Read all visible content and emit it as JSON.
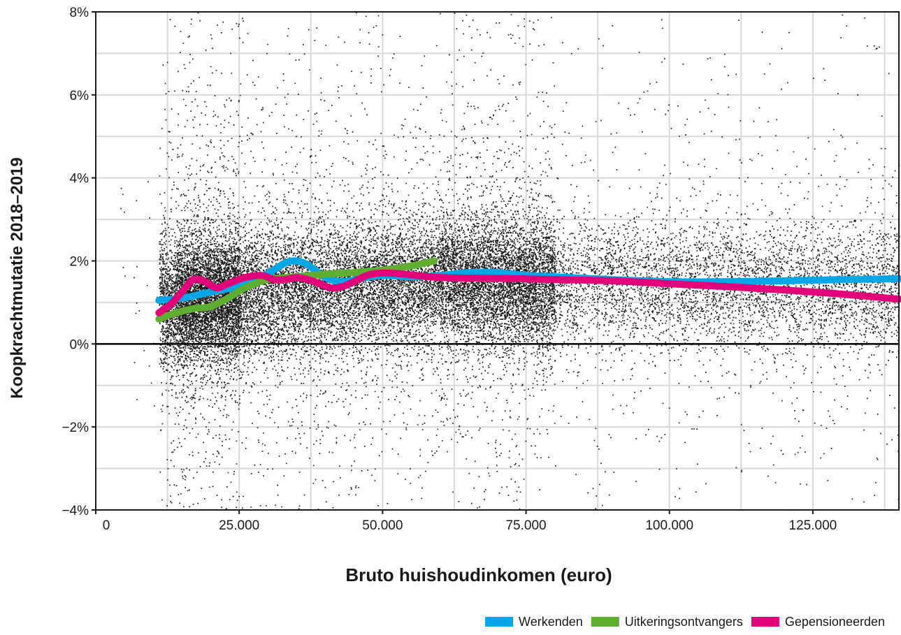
{
  "chart_data": {
    "type": "scatter",
    "xlabel": "Bruto huishoudinkomen (euro)",
    "ylabel": "Koopkrachtmutatie 2018–2019",
    "xlim": [
      0,
      140000
    ],
    "ylim": [
      -4,
      8
    ],
    "x_ticks": [
      {
        "value": 0,
        "label": "0"
      },
      {
        "value": 25000,
        "label": "25.000"
      },
      {
        "value": 50000,
        "label": "50.000"
      },
      {
        "value": 75000,
        "label": "75.000"
      },
      {
        "value": 100000,
        "label": "100.000"
      },
      {
        "value": 125000,
        "label": "125.000"
      }
    ],
    "y_ticks": [
      {
        "value": 8,
        "label": "8%"
      },
      {
        "value": 6,
        "label": "6%"
      },
      {
        "value": 4,
        "label": "4%"
      },
      {
        "value": 2,
        "label": "2%"
      },
      {
        "value": 0,
        "label": "0%"
      },
      {
        "value": -2,
        "label": "−2%"
      },
      {
        "value": -4,
        "label": "−4%"
      }
    ],
    "grid": true,
    "zero_line": true,
    "legend_position": "bottom-right",
    "scatter_color": "#1a1a1a",
    "series": [
      {
        "name": "Werkenden",
        "color": "#00a6e6",
        "x": [
          11000,
          15000,
          20000,
          25000,
          30000,
          33000,
          35000,
          37000,
          40000,
          43000,
          47000,
          50000,
          55000,
          60000,
          65000,
          70000,
          75000,
          80000,
          90000,
          100000,
          110000,
          120000,
          130000,
          140000
        ],
        "y": [
          1.05,
          1.1,
          1.25,
          1.4,
          1.7,
          1.95,
          2.0,
          1.9,
          1.6,
          1.5,
          1.6,
          1.65,
          1.62,
          1.65,
          1.72,
          1.72,
          1.65,
          1.62,
          1.55,
          1.5,
          1.5,
          1.52,
          1.55,
          1.57
        ]
      },
      {
        "name": "Uitkeringsontvangers",
        "color": "#5fae32",
        "x": [
          11000,
          14000,
          17000,
          20000,
          23000,
          26000,
          30000,
          35000,
          40000,
          45000,
          50000,
          55000,
          59000
        ],
        "y": [
          0.6,
          0.75,
          0.85,
          0.9,
          1.1,
          1.35,
          1.55,
          1.62,
          1.68,
          1.72,
          1.78,
          1.88,
          2.0
        ]
      },
      {
        "name": "Gepensioneerden",
        "color": "#e2007a",
        "x": [
          11000,
          13000,
          15000,
          17000,
          19000,
          21000,
          23000,
          26000,
          29000,
          31000,
          33000,
          35000,
          37000,
          39000,
          41000,
          43000,
          45000,
          48000,
          52000,
          60000,
          70000,
          80000,
          90000,
          100000,
          110000,
          120000,
          130000,
          140000
        ],
        "y": [
          0.75,
          0.95,
          1.25,
          1.55,
          1.5,
          1.35,
          1.45,
          1.6,
          1.65,
          1.55,
          1.55,
          1.6,
          1.55,
          1.45,
          1.35,
          1.38,
          1.5,
          1.68,
          1.7,
          1.6,
          1.58,
          1.55,
          1.52,
          1.45,
          1.38,
          1.3,
          1.2,
          1.08
        ]
      }
    ]
  }
}
